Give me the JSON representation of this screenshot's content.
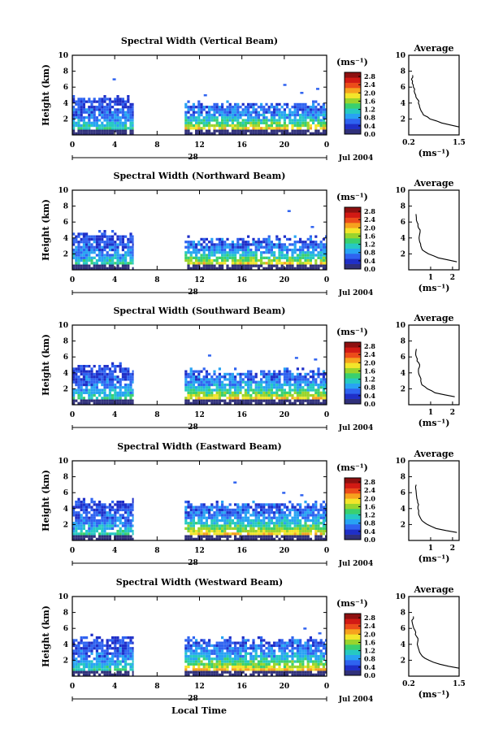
{
  "figure": {
    "xlabel": "Local Time",
    "date_label": "Jul 2004",
    "day_label": "28",
    "cbar_unit": "(ms⁻¹)",
    "avg_xlabel": "(ms⁻¹)",
    "avg_title": "Average",
    "ylabel": "Height (km)",
    "colormap": [
      "#30307a",
      "#1f2fc8",
      "#2f63f0",
      "#28a3f3",
      "#26c9c2",
      "#3ad06e",
      "#9ad42c",
      "#f3e52a",
      "#f6a21e",
      "#ec4c1a",
      "#d21a14",
      "#8e1010"
    ]
  },
  "chart_data": [
    {
      "type": "heatmap",
      "title": "Spectral Width (Vertical Beam)",
      "ylabel": "Height (km)",
      "xlim": [
        0,
        24
      ],
      "ylim": [
        0,
        10
      ],
      "x_ticks": [
        "0",
        "4",
        "8",
        "12",
        "16",
        "20",
        "0"
      ],
      "y_ticks": [
        "2",
        "4",
        "6",
        "8",
        "10"
      ],
      "colorbar": {
        "range": [
          0.0,
          3.0
        ],
        "ticks": [
          "0.0",
          "0.4",
          "0.8",
          "1.2",
          "1.6",
          "2.0",
          "2.4",
          "2.8"
        ]
      },
      "data_segments": [
        {
          "x_start": 0.0,
          "x_end": 5.8,
          "top_km": 4.6,
          "blobs": [
            [
              3.8,
              6.9
            ]
          ]
        },
        {
          "x_start": 10.6,
          "x_end": 24.0,
          "top_km": 3.9,
          "blobs": [
            [
              12.4,
              4.9
            ],
            [
              19.9,
              6.2
            ],
            [
              21.5,
              5.2
            ],
            [
              23.0,
              5.7
            ]
          ]
        }
      ],
      "average": {
        "xlim": [
          0.2,
          1.5
        ],
        "x_ticks": [
          "0.2",
          "1.5"
        ],
        "y_ticks": [
          "2",
          "4",
          "6",
          "8",
          "10"
        ],
        "height_km": [
          1.0,
          1.5,
          2.0,
          2.5,
          3.0,
          3.5,
          4.0,
          4.5,
          5.0,
          5.5,
          6.0,
          6.5,
          7.0,
          7.5
        ],
        "width_ms": [
          1.5,
          1.05,
          0.75,
          0.58,
          0.52,
          0.48,
          0.45,
          0.42,
          0.38,
          0.34,
          0.32,
          0.29,
          0.27,
          0.3
        ]
      }
    },
    {
      "type": "heatmap",
      "title": "Spectral Width (Northward Beam)",
      "ylabel": "Height (km)",
      "xlim": [
        0,
        24
      ],
      "ylim": [
        0,
        10
      ],
      "x_ticks": [
        "0",
        "4",
        "8",
        "12",
        "16",
        "20",
        "0"
      ],
      "y_ticks": [
        "2",
        "4",
        "6",
        "8",
        "10"
      ],
      "colorbar": {
        "range": [
          0.0,
          3.0
        ],
        "ticks": [
          "0.0",
          "0.4",
          "0.8",
          "1.2",
          "1.6",
          "2.0",
          "2.4",
          "2.8"
        ]
      },
      "data_segments": [
        {
          "x_start": 0.0,
          "x_end": 5.8,
          "top_km": 4.6,
          "blobs": []
        },
        {
          "x_start": 10.6,
          "x_end": 24.0,
          "top_km": 3.8,
          "blobs": [
            [
              20.3,
              7.3
            ],
            [
              22.5,
              5.3
            ]
          ]
        }
      ],
      "average": {
        "xlim": [
          0,
          2.3
        ],
        "x_ticks": [
          "1",
          "2"
        ],
        "y_ticks": [
          "2",
          "4",
          "6",
          "8",
          "10"
        ],
        "height_km": [
          1.0,
          1.5,
          2.0,
          2.5,
          3.0,
          3.5,
          4.0,
          4.5,
          5.0,
          5.5,
          6.0,
          6.5,
          7.0
        ],
        "width_ms": [
          2.2,
          1.35,
          0.9,
          0.62,
          0.55,
          0.5,
          0.47,
          0.5,
          0.52,
          0.42,
          0.38,
          0.35,
          0.33
        ]
      }
    },
    {
      "type": "heatmap",
      "title": "Spectral Width (Southward Beam)",
      "ylabel": "Height (km)",
      "xlim": [
        0,
        24
      ],
      "ylim": [
        0,
        10
      ],
      "x_ticks": [
        "0",
        "4",
        "8",
        "12",
        "16",
        "20",
        "0"
      ],
      "y_ticks": [
        "2",
        "4",
        "6",
        "8",
        "10"
      ],
      "colorbar": {
        "range": [
          0.0,
          3.0
        ],
        "ticks": [
          "0.0",
          "0.4",
          "0.8",
          "1.2",
          "1.6",
          "2.0",
          "2.4",
          "2.8"
        ]
      },
      "data_segments": [
        {
          "x_start": 0.0,
          "x_end": 5.8,
          "top_km": 4.8,
          "blobs": []
        },
        {
          "x_start": 10.6,
          "x_end": 24.0,
          "top_km": 4.2,
          "blobs": [
            [
              12.8,
              6.1
            ],
            [
              21.0,
              5.8
            ],
            [
              22.8,
              5.6
            ]
          ]
        }
      ],
      "average": {
        "xlim": [
          0,
          2.3
        ],
        "x_ticks": [
          "1",
          "2"
        ],
        "y_ticks": [
          "2",
          "4",
          "6",
          "8",
          "10"
        ],
        "height_km": [
          1.0,
          1.5,
          2.0,
          2.5,
          3.0,
          3.5,
          4.0,
          4.5,
          5.0,
          5.5,
          6.0,
          6.5,
          7.0
        ],
        "width_ms": [
          2.1,
          1.2,
          0.85,
          0.6,
          0.55,
          0.52,
          0.45,
          0.45,
          0.5,
          0.38,
          0.35,
          0.32,
          0.35
        ]
      }
    },
    {
      "type": "heatmap",
      "title": "Spectral Width (Eastward Beam)",
      "ylabel": "Height (km)",
      "xlim": [
        0,
        24
      ],
      "ylim": [
        0,
        10
      ],
      "x_ticks": [
        "0",
        "4",
        "8",
        "12",
        "16",
        "20",
        "0"
      ],
      "y_ticks": [
        "2",
        "4",
        "6",
        "8",
        "10"
      ],
      "colorbar": {
        "range": [
          0.0,
          3.0
        ],
        "ticks": [
          "0.0",
          "0.4",
          "0.8",
          "1.2",
          "1.6",
          "2.0",
          "2.4",
          "2.8"
        ]
      },
      "data_segments": [
        {
          "x_start": 0.0,
          "x_end": 5.8,
          "top_km": 4.8,
          "blobs": []
        },
        {
          "x_start": 10.6,
          "x_end": 24.0,
          "top_km": 4.6,
          "blobs": [
            [
              15.2,
              7.2
            ],
            [
              19.8,
              5.9
            ],
            [
              21.5,
              5.6
            ]
          ]
        }
      ],
      "average": {
        "xlim": [
          0,
          2.3
        ],
        "x_ticks": [
          "1",
          "2"
        ],
        "y_ticks": [
          "2",
          "4",
          "6",
          "8",
          "10"
        ],
        "height_km": [
          1.0,
          1.5,
          2.0,
          2.5,
          3.0,
          3.5,
          4.0,
          4.5,
          5.0,
          5.5,
          6.0,
          6.5,
          7.0
        ],
        "width_ms": [
          2.2,
          1.25,
          0.85,
          0.6,
          0.5,
          0.45,
          0.42,
          0.45,
          0.4,
          0.36,
          0.34,
          0.32,
          0.34
        ]
      }
    },
    {
      "type": "heatmap",
      "title": "Spectral Width (Westward Beam)",
      "ylabel": "Height (km)",
      "xlim": [
        0,
        24
      ],
      "ylim": [
        0,
        10
      ],
      "x_ticks": [
        "0",
        "4",
        "8",
        "12",
        "16",
        "20",
        "0"
      ],
      "y_ticks": [
        "2",
        "4",
        "6",
        "8",
        "10"
      ],
      "colorbar": {
        "range": [
          0.0,
          3.0
        ],
        "ticks": [
          "0.0",
          "0.4",
          "0.8",
          "1.2",
          "1.6",
          "2.0",
          "2.4",
          "2.8"
        ]
      },
      "data_segments": [
        {
          "x_start": 0.0,
          "x_end": 5.8,
          "top_km": 4.8,
          "blobs": []
        },
        {
          "x_start": 10.6,
          "x_end": 24.0,
          "top_km": 4.6,
          "blobs": [
            [
              21.8,
              5.9
            ],
            [
              23.2,
              5.3
            ]
          ]
        }
      ],
      "average": {
        "xlim": [
          0.2,
          1.5
        ],
        "x_ticks": [
          "0.2",
          "1.5"
        ],
        "y_ticks": [
          "2",
          "4",
          "6",
          "8",
          "10"
        ],
        "height_km": [
          1.0,
          1.5,
          2.0,
          2.5,
          3.0,
          3.5,
          4.0,
          4.5,
          5.0,
          5.5,
          6.0,
          6.5,
          7.0,
          7.5
        ],
        "width_ms": [
          1.5,
          1.0,
          0.72,
          0.55,
          0.48,
          0.45,
          0.42,
          0.44,
          0.4,
          0.38,
          0.33,
          0.3,
          0.28,
          0.32
        ]
      }
    }
  ]
}
